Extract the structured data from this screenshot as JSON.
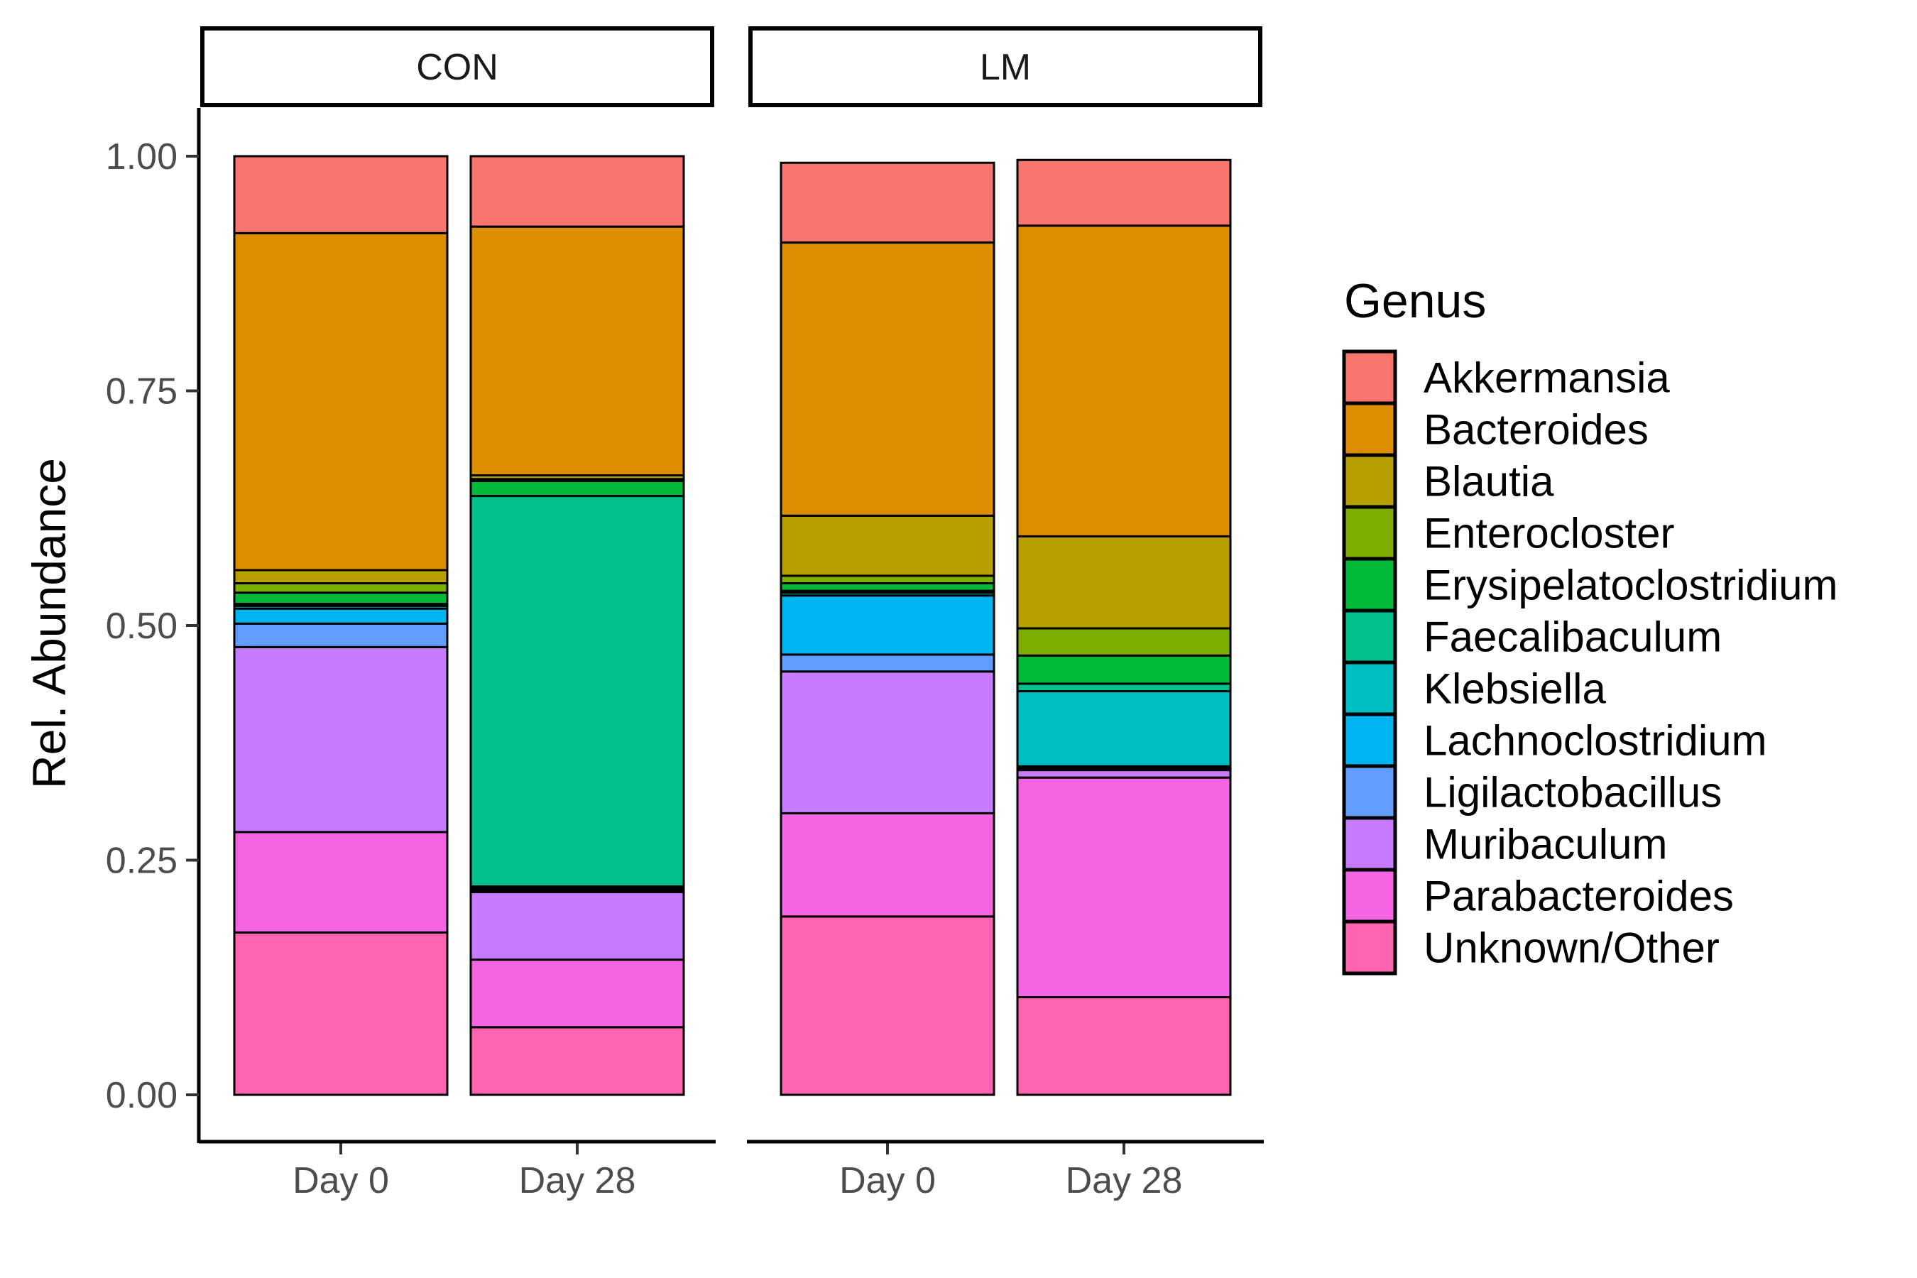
{
  "chart_data": {
    "type": "bar",
    "stacked": true,
    "ylabel": "Rel. Abundance",
    "ylim": [
      0,
      1
    ],
    "yticks": [
      "0.00",
      "0.25",
      "0.50",
      "0.75",
      "1.00"
    ],
    "ytick_values": [
      0,
      0.25,
      0.5,
      0.75,
      1.0
    ],
    "grid": false,
    "legend_position": "right",
    "legend": {
      "title": "Genus",
      "items": [
        {
          "name": "Akkermansia",
          "color": "#F8766D"
        },
        {
          "name": "Bacteroides",
          "color": "#DE8C00"
        },
        {
          "name": "Blautia",
          "color": "#B79F00"
        },
        {
          "name": "Enterocloster",
          "color": "#7CAE00"
        },
        {
          "name": "Erysipelatoclostridium",
          "color": "#00BA38"
        },
        {
          "name": "Faecalibaculum",
          "color": "#00C08B"
        },
        {
          "name": "Klebsiella",
          "color": "#00BFC4"
        },
        {
          "name": "Lachnoclostridium",
          "color": "#00B4F0"
        },
        {
          "name": "Ligilactobacillus",
          "color": "#619CFF"
        },
        {
          "name": "Muribaculum",
          "color": "#C77CFF"
        },
        {
          "name": "Parabacteroides",
          "color": "#F564E3"
        },
        {
          "name": "Unknown/Other",
          "color": "#FF64B0"
        }
      ]
    },
    "panels": [
      {
        "strip": "CON",
        "categories": [
          "Day 0",
          "Day 28"
        ],
        "series": [
          {
            "name": "Unknown/Other",
            "values": [
              0.173,
              0.072
            ]
          },
          {
            "name": "Parabacteroides",
            "values": [
              0.107,
              0.072
            ]
          },
          {
            "name": "Muribaculum",
            "values": [
              0.197,
              0.072
            ]
          },
          {
            "name": "Ligilactobacillus",
            "values": [
              0.025,
              0.002
            ]
          },
          {
            "name": "Lachnoclostridium",
            "values": [
              0.016,
              0.002
            ]
          },
          {
            "name": "Klebsiella",
            "values": [
              0.003,
              0.002
            ]
          },
          {
            "name": "Faecalibaculum",
            "values": [
              0.002,
              0.416
            ]
          },
          {
            "name": "Erysipelatoclostridium",
            "values": [
              0.012,
              0.016
            ]
          },
          {
            "name": "Enterocloster",
            "values": [
              0.01,
              0.002
            ]
          },
          {
            "name": "Blautia",
            "values": [
              0.014,
              0.004
            ]
          },
          {
            "name": "Bacteroides",
            "values": [
              0.359,
              0.265
            ]
          },
          {
            "name": "Akkermansia",
            "values": [
              0.082,
              0.075
            ]
          }
        ]
      },
      {
        "strip": "LM",
        "categories": [
          "Day 0",
          "Day 28"
        ],
        "series": [
          {
            "name": "Unknown/Other",
            "values": [
              0.19,
              0.104
            ]
          },
          {
            "name": "Parabacteroides",
            "values": [
              0.11,
              0.234
            ]
          },
          {
            "name": "Muribaculum",
            "values": [
              0.151,
              0.008
            ]
          },
          {
            "name": "Ligilactobacillus",
            "values": [
              0.018,
              0.002
            ]
          },
          {
            "name": "Lachnoclostridium",
            "values": [
              0.063,
              0.002
            ]
          },
          {
            "name": "Klebsiella",
            "values": [
              0.003,
              0.08
            ]
          },
          {
            "name": "Faecalibaculum",
            "values": [
              0.002,
              0.008
            ]
          },
          {
            "name": "Erysipelatoclostridium",
            "values": [
              0.008,
              0.03
            ]
          },
          {
            "name": "Enterocloster",
            "values": [
              0.008,
              0.029
            ]
          },
          {
            "name": "Blautia",
            "values": [
              0.064,
              0.098
            ]
          },
          {
            "name": "Bacteroides",
            "values": [
              0.291,
              0.331
            ]
          },
          {
            "name": "Akkermansia",
            "values": [
              0.085,
              0.07
            ]
          }
        ]
      }
    ]
  }
}
